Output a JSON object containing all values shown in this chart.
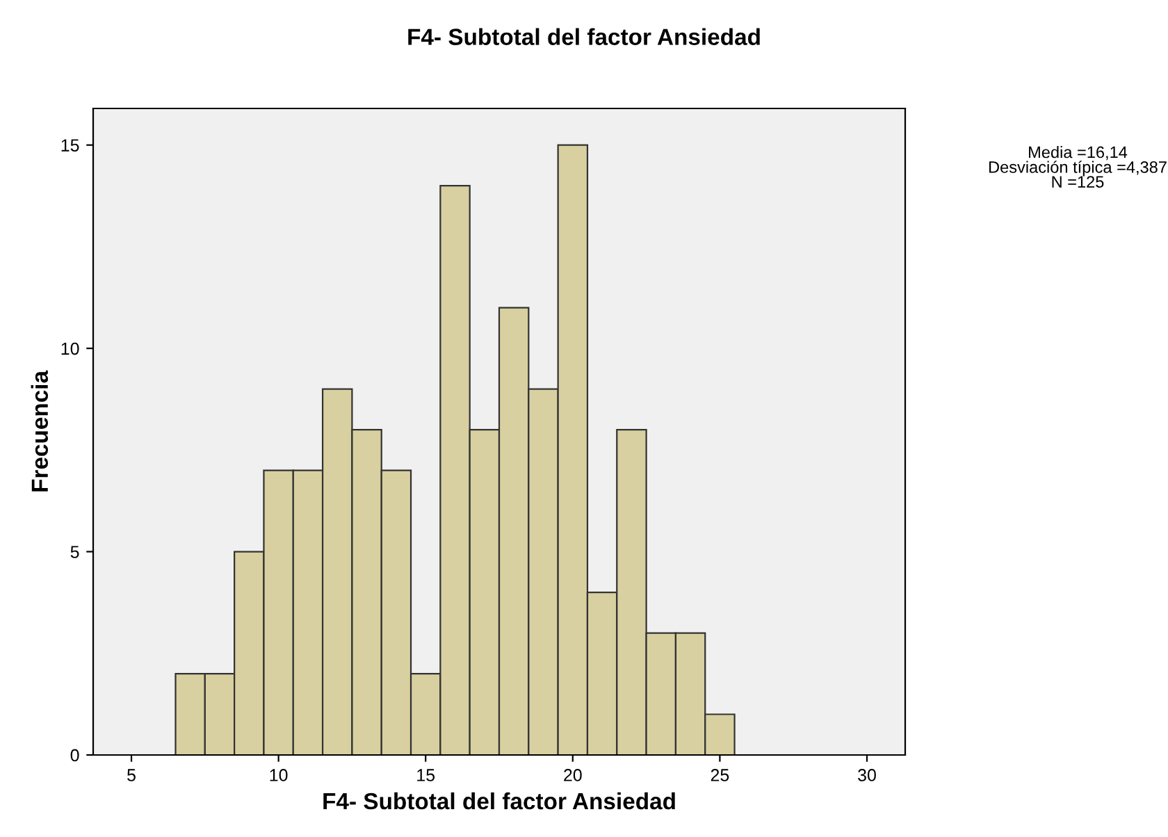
{
  "chart_data": {
    "type": "histogram",
    "title": "F4- Subtotal del factor Ansiedad",
    "xlabel": "F4- Subtotal del factor Ansiedad",
    "ylabel": "Frecuencia",
    "bins": [
      6.5,
      7.5,
      8.5,
      9.5,
      10.5,
      11.5,
      12.5,
      13.5,
      14.5,
      15.5,
      16.5,
      17.5,
      18.5,
      19.5,
      20.5,
      21.5,
      22.5,
      23.5,
      24.5,
      25.5
    ],
    "values": [
      2,
      2,
      5,
      7,
      7,
      9,
      8,
      7,
      2,
      14,
      8,
      11,
      9,
      15,
      4,
      8,
      3,
      3,
      1
    ],
    "color": "#d8d0a0",
    "xlim": [
      3.7,
      31.3
    ],
    "xticks": [
      5,
      10,
      15,
      20,
      25,
      30
    ],
    "ylim": [
      0,
      15.9
    ],
    "yticks": [
      0,
      5,
      10,
      15
    ],
    "grid": false,
    "annotations": [
      "Media =16,14\nDesviación típica =4,387\nN =125"
    ]
  }
}
